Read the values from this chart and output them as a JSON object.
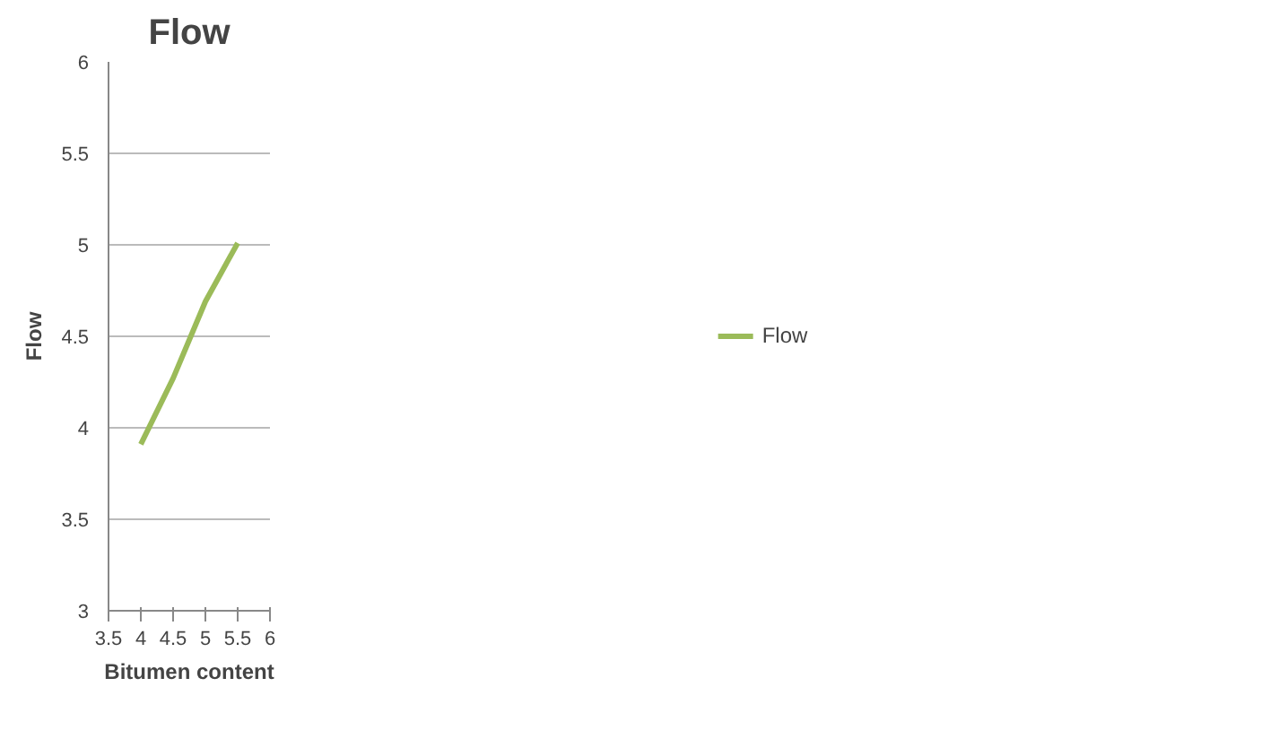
{
  "chart_data": {
    "type": "line",
    "title": "Flow",
    "xlabel": "Bitumen content",
    "ylabel": "Flow",
    "x": [
      4,
      4.5,
      5,
      5.5
    ],
    "series": [
      {
        "name": "Flow",
        "color": "#9bbb59",
        "values": [
          3.91,
          4.27,
          4.69,
          5.01
        ]
      }
    ],
    "xlim": [
      3.5,
      6
    ],
    "xticks": [
      3.5,
      4,
      4.5,
      5,
      5.5,
      6
    ],
    "ylim": [
      3,
      6
    ],
    "yticks": [
      3,
      3.5,
      4,
      4.5,
      5,
      5.5,
      6
    ],
    "grid": "y",
    "legend": "right",
    "marker": "none",
    "line_style": "solid"
  }
}
